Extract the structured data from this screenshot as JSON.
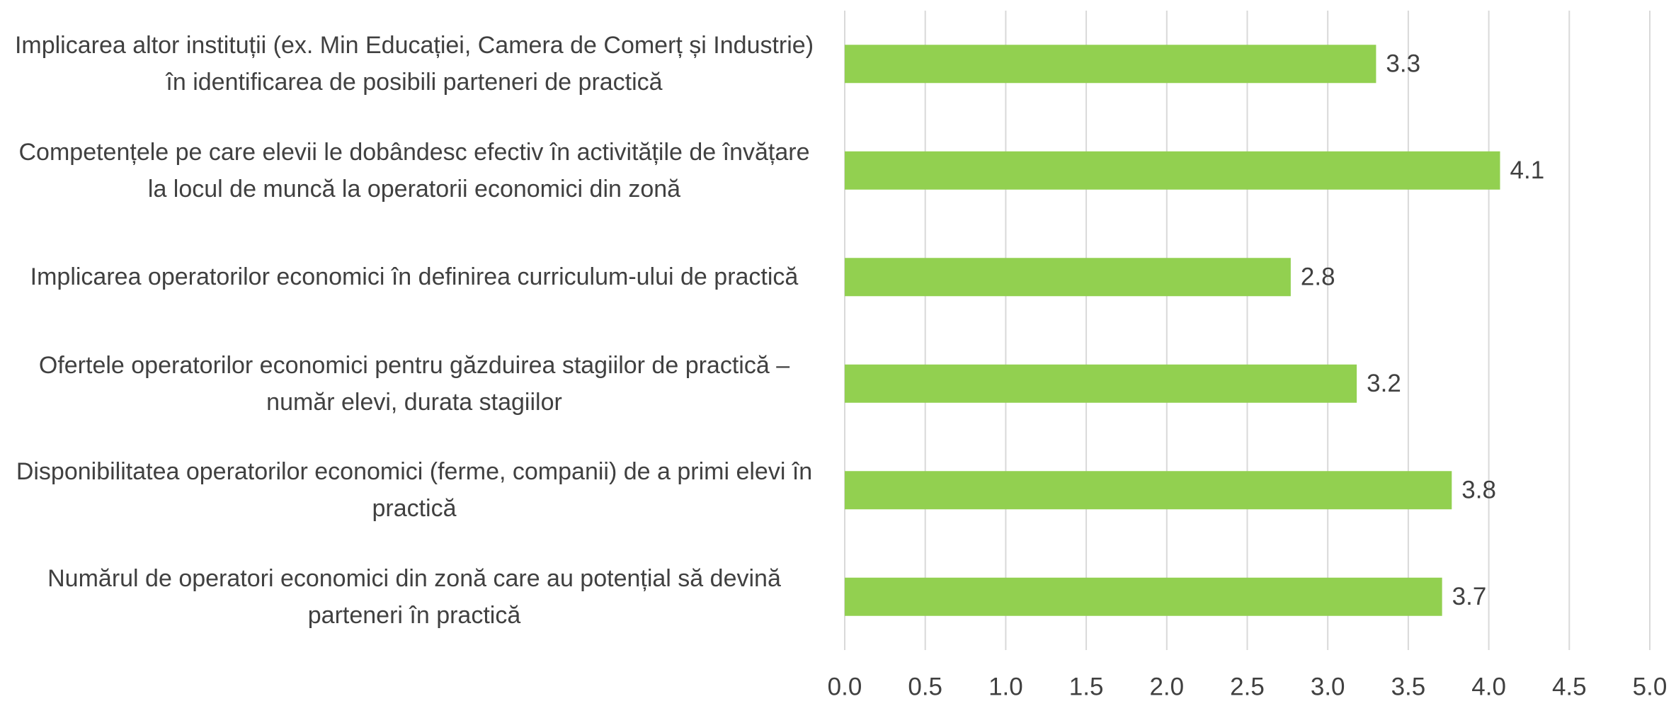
{
  "chart_data": {
    "type": "hbar",
    "categories": [
      "Implicarea altor instituții (ex. Min Educației, Camera de Comerț și Industrie) în identificarea de posibili parteneri de practică",
      "Competențele pe care elevii le dobândesc efectiv în activitățile de învățare la locul de muncă la operatorii economici din zonă",
      "Implicarea operatorilor economici în definirea curriculum-ului de practică",
      "Ofertele operatorilor economici pentru găzduirea stagiilor de practică – număr elevi, durata stagiilor",
      "Disponibilitatea operatorilor economici (ferme, companii) de a primi elevi în practică",
      "Numărul de operatori economici din zonă care au potențial să devină parteneri în practică"
    ],
    "values": [
      3.3,
      4.07,
      2.77,
      3.18,
      3.77,
      3.71
    ],
    "value_labels": [
      "3.3",
      "4.1",
      "2.8",
      "3.2",
      "3.8",
      "3.7"
    ],
    "color": "#92d050",
    "xlim": [
      0,
      5
    ],
    "xticks": [
      {
        "value": 0,
        "label": "0.0"
      },
      {
        "value": 0.5,
        "label": "0.5"
      },
      {
        "value": 1,
        "label": "1.0"
      },
      {
        "value": 1.5,
        "label": "1.5"
      },
      {
        "value": 2,
        "label": "2.0"
      },
      {
        "value": 2.5,
        "label": "2.5"
      },
      {
        "value": 3,
        "label": "3.0"
      },
      {
        "value": 3.5,
        "label": "3.5"
      },
      {
        "value": 4,
        "label": "4.0"
      },
      {
        "value": 4.5,
        "label": "4.5"
      },
      {
        "value": 5,
        "label": "5.0"
      }
    ],
    "grid": true
  }
}
